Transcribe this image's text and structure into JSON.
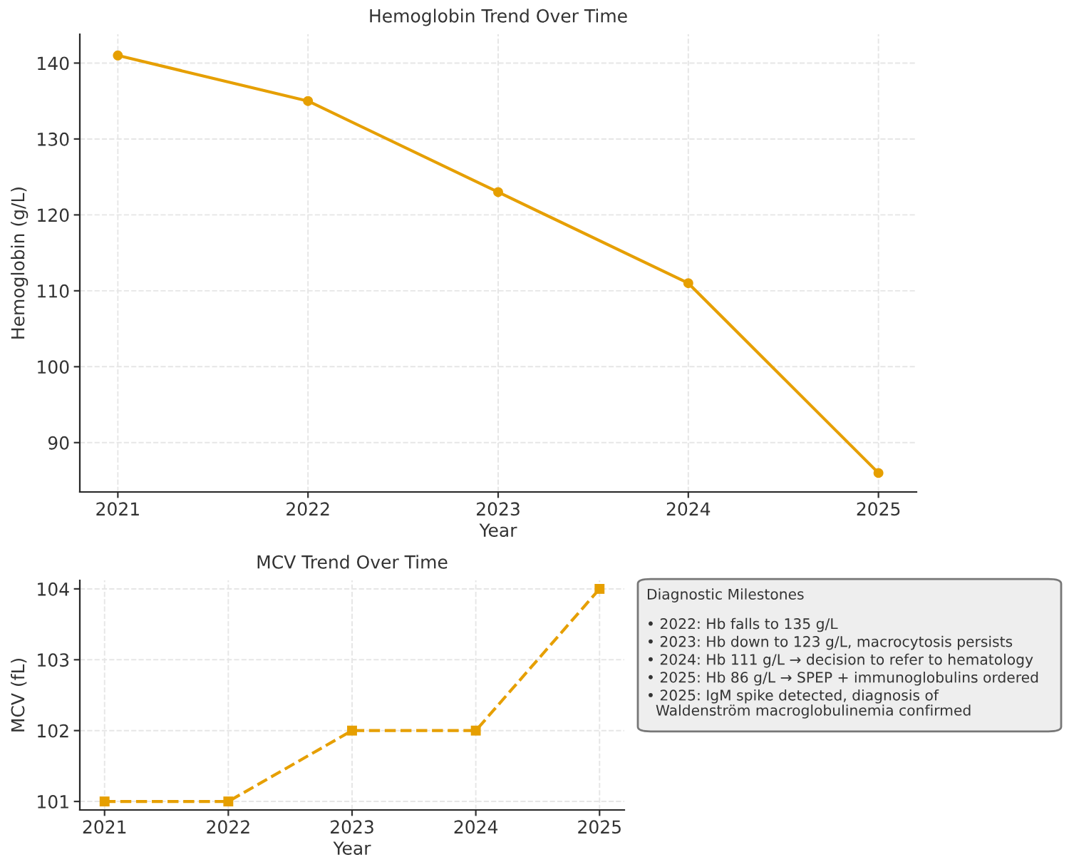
{
  "chart_data": [
    {
      "type": "line",
      "title": "Hemoglobin Trend Over Time",
      "xlabel": "Year",
      "ylabel": "Hemoglobin (g/L)",
      "x": [
        2021,
        2022,
        2023,
        2024,
        2025
      ],
      "series": [
        {
          "color": "#e69f00",
          "values": [
            141,
            135,
            123,
            111,
            86
          ]
        }
      ],
      "xlim": [
        2020.8,
        2025.2
      ],
      "xticks": [
        2021,
        2022,
        2023,
        2024,
        2025
      ],
      "ylim": [
        83.5,
        143.8
      ],
      "yticks": [
        90,
        100,
        110,
        120,
        130,
        140
      ],
      "grid": true,
      "marker": "circle",
      "line_style": "solid"
    },
    {
      "type": "line",
      "title": "MCV Trend Over Time",
      "xlabel": "Year",
      "ylabel": "MCV (fL)",
      "x": [
        2021,
        2022,
        2023,
        2024,
        2025
      ],
      "series": [
        {
          "color": "#e69f00",
          "values": [
            101,
            101,
            102,
            102,
            104
          ]
        }
      ],
      "xlim": [
        2020.8,
        2025.2
      ],
      "xticks": [
        2021,
        2022,
        2023,
        2024,
        2025
      ],
      "ylim": [
        100.88,
        104.12
      ],
      "yticks": [
        101,
        102,
        103,
        104
      ],
      "grid": true,
      "marker": "square",
      "line_style": "dashed"
    },
    {
      "type": "other",
      "title": "Diagnostic Milestones",
      "annotations": [
        "• 2022: Hb falls to 135 g/L",
        "• 2023: Hb down to 123 g/L, macrocytosis persists",
        "• 2024: Hb 111 g/L → decision to refer to hematology",
        "• 2025: Hb 86 g/L → SPEP + immunoglobulins ordered",
        "• 2025: IgM spike detected, diagnosis of\n  Waldenström macroglobulinemia confirmed"
      ]
    }
  ]
}
